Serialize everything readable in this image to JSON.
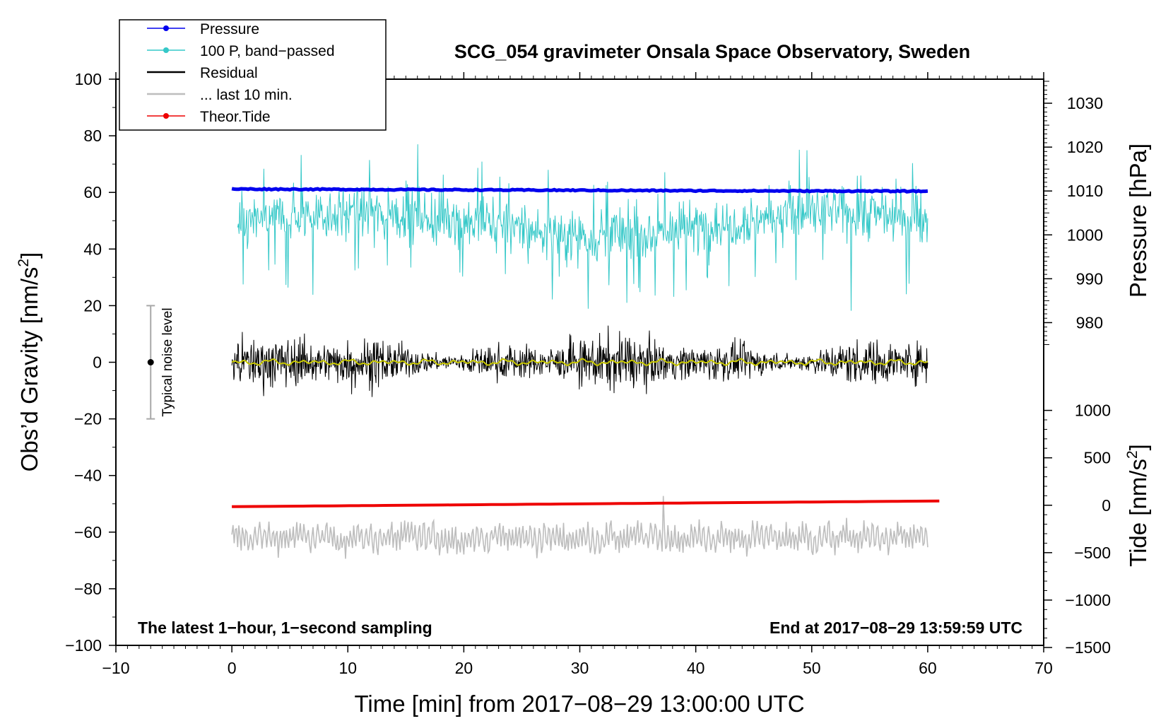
{
  "chart_data": {
    "type": "line",
    "title": "SCG_054 gravimeter Onsala Space Observatory, Sweden",
    "xlabel": "Time [min] from 2017−08−29 13:00:00 UTC",
    "ylabel_left": "Obs’d Gravity [nm/s",
    "ylabel_left_sup": "2",
    "ylabel_left_close": "]",
    "ylabel_right_pressure": "Pressure [hPa]",
    "ylabel_right_tide": "Tide [nm/s",
    "ylabel_right_tide_sup": "2",
    "ylabel_right_tide_close": "]",
    "xlim": [
      -10,
      70
    ],
    "ylim_left": [
      -100,
      100
    ],
    "x_ticks": [
      -10,
      0,
      10,
      20,
      30,
      40,
      50,
      60,
      70
    ],
    "x_tick_labels": [
      "−10",
      "0",
      "10",
      "20",
      "30",
      "40",
      "50",
      "60",
      "70"
    ],
    "y_ticks_left": [
      -100,
      -80,
      -60,
      -40,
      -20,
      0,
      20,
      40,
      60,
      80,
      100
    ],
    "y_tick_labels_left": [
      "−100",
      "−80",
      "−60",
      "−40",
      "−20",
      "0",
      "20",
      "40",
      "60",
      "80",
      "100"
    ],
    "pressure_axis": {
      "ticks": [
        980,
        990,
        1000,
        1010,
        1020,
        1030
      ],
      "tick_labels": [
        "980",
        "990",
        "1000",
        "1010",
        "1020",
        "1030"
      ],
      "gravity_at_1010": 60.5,
      "gravity_per_hpa": 1.55
    },
    "tide_axis": {
      "ticks": [
        -1500,
        -1000,
        -500,
        0,
        500,
        1000
      ],
      "tick_labels": [
        "−1500",
        "−1000",
        "−500",
        "0",
        "500",
        "1000"
      ],
      "gravity_at_zero": -50.5,
      "gravity_per_unit": 0.0335
    },
    "series": [
      {
        "name": "Pressure",
        "color": "#0000ee",
        "x_range": [
          0,
          60
        ],
        "values_gravity": [
          61.2,
          60.9,
          60.6,
          60.4
        ],
        "description_values_hpa": [
          1010.4,
          1010.2,
          1010.0,
          1009.9
        ]
      },
      {
        "name": "100 P, band−passed",
        "color": "#35c8c8",
        "x_range": [
          0.5,
          60
        ],
        "center": 49,
        "amplitude": 9
      },
      {
        "name": "Residual",
        "color": "#000000",
        "x_range": [
          0,
          60
        ],
        "center": 0,
        "amplitude": 5
      },
      {
        "name": "... last 10 min.",
        "color": "#bdbdbd",
        "x_range": [
          0,
          60
        ],
        "center": -62,
        "amplitude": 4
      },
      {
        "name": "Theor.Tide",
        "color": "#ee0000",
        "x_range": [
          0,
          61
        ],
        "values_gravity": [
          -51.0,
          -49.0
        ]
      }
    ],
    "smoothed_residual_color": "#c8c800",
    "noise_bar": {
      "x": -7,
      "low": -20,
      "high": 20,
      "label": "Typical noise level"
    },
    "annotations": {
      "left": "The latest 1−hour, 1−second sampling",
      "right": "End at 2017−08−29 13:59:59 UTC"
    },
    "legend_position": "top-left"
  }
}
